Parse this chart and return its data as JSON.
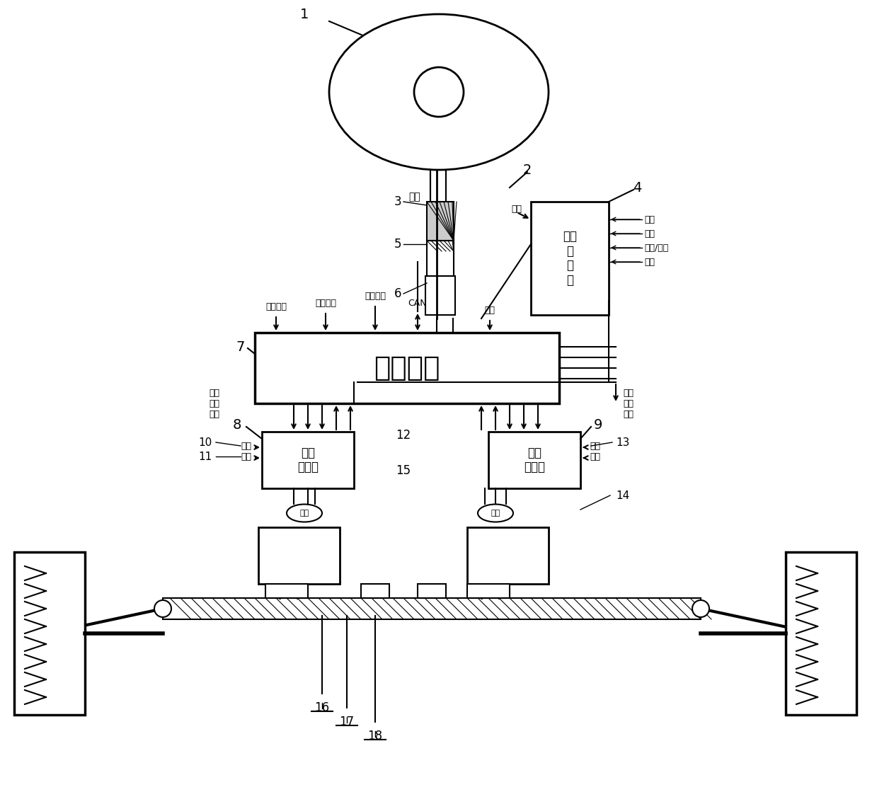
{
  "bg_color": "#ffffff",
  "line_color": "#000000",
  "fig_width": 12.39,
  "fig_height": 11.36,
  "labels": {
    "1": "1",
    "2": "2",
    "3": "3",
    "4": "4",
    "5": "5",
    "6": "6",
    "7": "7",
    "8": "8",
    "9": "9",
    "10": "10",
    "11": "11",
    "12": "12",
    "13": "13",
    "14": "14",
    "15": "15",
    "16": "16",
    "17": "17",
    "18": "18"
  },
  "chinese_texts": {
    "main_controller": "主控制器",
    "servo_driver_left": "伺服\n驱动器",
    "servo_driver_right": "伺服\n驱动器",
    "servo_driver_top": "驱动\n伺\n服\n器",
    "torque": "转矩",
    "current_top": "电流",
    "current_left": "电流",
    "current_right": "电流",
    "position_top": "位置",
    "position_left": "位置",
    "position_right": "位置",
    "fault_left": "故障",
    "position_label_left": "位置",
    "direction_left": "方向",
    "speed_left": "转速",
    "fault_right": "故障",
    "direction_right": "方向",
    "speed_right": "转速",
    "ignition": "点火信号",
    "vehicle_speed": "车速信号",
    "work_indicator": "工作指示",
    "CAN": "CAN",
    "mode": "模式",
    "direction_top": "方向",
    "position_torque": "位置/转矩",
    "fault_top": "故障",
    "fault_pos_dir_left": "故障\n位置\n方向",
    "dir_pos_fault_right": "方向\n位置\n故障"
  }
}
